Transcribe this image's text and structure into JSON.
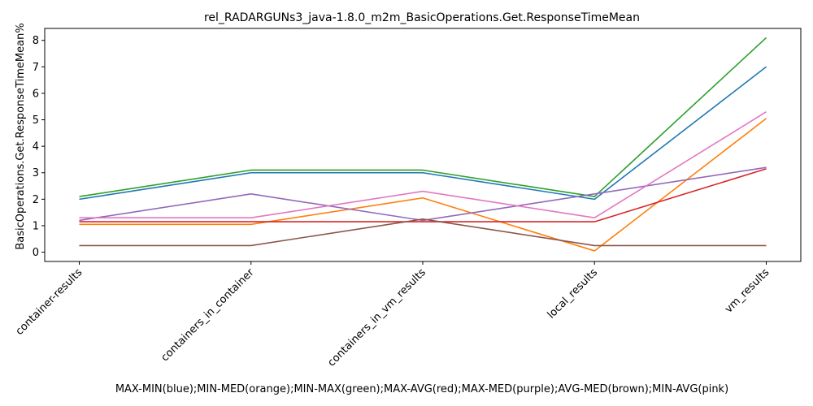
{
  "chart_data": {
    "type": "line",
    "title": "rel_RADARGUNs3_java-1.8.0_m2m_BasicOperations.Get.ResponseTimeMean",
    "xlabel": "MAX-MIN(blue);MIN-MED(orange);MIN-MAX(green);MAX-AVG(red);MAX-MED(purple);AVG-MED(brown);MIN-AVG(pink)",
    "ylabel": "BasicOperations.Get.ResponseTimeMean%",
    "categories": [
      "container-results",
      "containers_in_container",
      "containers_in_vm_results",
      "local_results",
      "vm_results"
    ],
    "ylim": [
      -0.35,
      8.45
    ],
    "yticks": [
      0,
      1,
      2,
      3,
      4,
      5,
      6,
      7,
      8
    ],
    "grid": false,
    "series": [
      {
        "color": "#1f77b4",
        "values": [
          2.0,
          3.0,
          3.0,
          2.0,
          7.0
        ]
      },
      {
        "color": "#ff7f0e",
        "values": [
          1.05,
          1.05,
          2.05,
          0.05,
          5.05
        ]
      },
      {
        "color": "#2ca02c",
        "values": [
          2.1,
          3.1,
          3.1,
          2.1,
          8.1
        ]
      },
      {
        "color": "#d62728",
        "values": [
          1.15,
          1.15,
          1.15,
          1.15,
          3.15
        ]
      },
      {
        "color": "#9467bd",
        "values": [
          1.2,
          2.2,
          1.2,
          2.2,
          3.2
        ]
      },
      {
        "color": "#8c564b",
        "values": [
          0.25,
          0.25,
          1.25,
          0.25,
          0.25
        ]
      },
      {
        "color": "#e377c2",
        "values": [
          1.3,
          1.3,
          2.3,
          1.3,
          5.3
        ]
      }
    ]
  }
}
